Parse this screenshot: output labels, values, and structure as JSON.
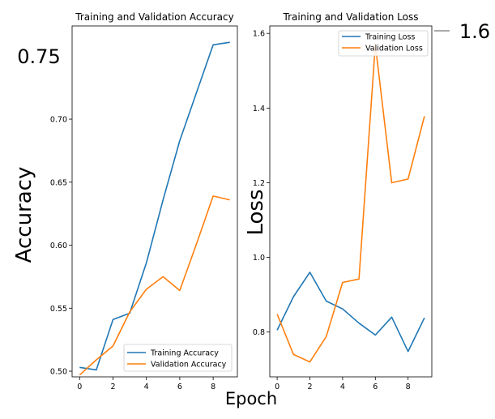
{
  "chart_data": [
    {
      "type": "line",
      "title": "Training and Validation Accuracy",
      "ylabel": "Accuracy",
      "xlabel": "",
      "x": [
        0,
        1,
        2,
        3,
        4,
        5,
        6,
        7,
        8,
        9
      ],
      "xticks": [
        "0",
        "2",
        "4",
        "6",
        "8"
      ],
      "yticks": [
        "0.50",
        "0.55",
        "0.60",
        "0.65",
        "0.70"
      ],
      "ytick_overlay": "0.75",
      "xlim": [
        -0.45,
        9.45
      ],
      "ylim": [
        0.4955,
        0.774
      ],
      "grid": false,
      "legend": "lower right",
      "series": [
        {
          "name": "Training Accuracy",
          "color": "#1f77b4",
          "values": [
            0.503,
            0.501,
            0.541,
            0.546,
            0.586,
            0.636,
            0.683,
            0.721,
            0.759,
            0.761
          ]
        },
        {
          "name": "Validation Accuracy",
          "color": "#ff7f0e",
          "values": [
            0.497,
            0.509,
            0.52,
            0.547,
            0.565,
            0.575,
            0.564,
            0.601,
            0.639,
            0.636
          ]
        }
      ]
    },
    {
      "type": "line",
      "title": "Training and Validation Loss",
      "ylabel": "Loss",
      "xlabel": "Epoch",
      "x": [
        0,
        1,
        2,
        3,
        4,
        5,
        6,
        7,
        8,
        9
      ],
      "xticks": [
        "0",
        "2",
        "4",
        "6",
        "8"
      ],
      "yticks": [
        "0.8",
        "1.0",
        "1.2",
        "1.4",
        "1.6"
      ],
      "ytick_overlay": "1.6",
      "xlim": [
        -0.45,
        9.45
      ],
      "ylim": [
        0.68,
        1.62
      ],
      "grid": false,
      "legend": "upper right",
      "series": [
        {
          "name": "Training Loss",
          "color": "#1f77b4",
          "values": [
            0.805,
            0.895,
            0.96,
            0.883,
            0.862,
            0.824,
            0.792,
            0.84,
            0.748,
            0.838
          ]
        },
        {
          "name": "Validation Loss",
          "color": "#ff7f0e",
          "values": [
            0.848,
            0.74,
            0.72,
            0.788,
            0.933,
            0.942,
            1.57,
            1.2,
            1.21,
            1.378
          ]
        }
      ]
    }
  ]
}
